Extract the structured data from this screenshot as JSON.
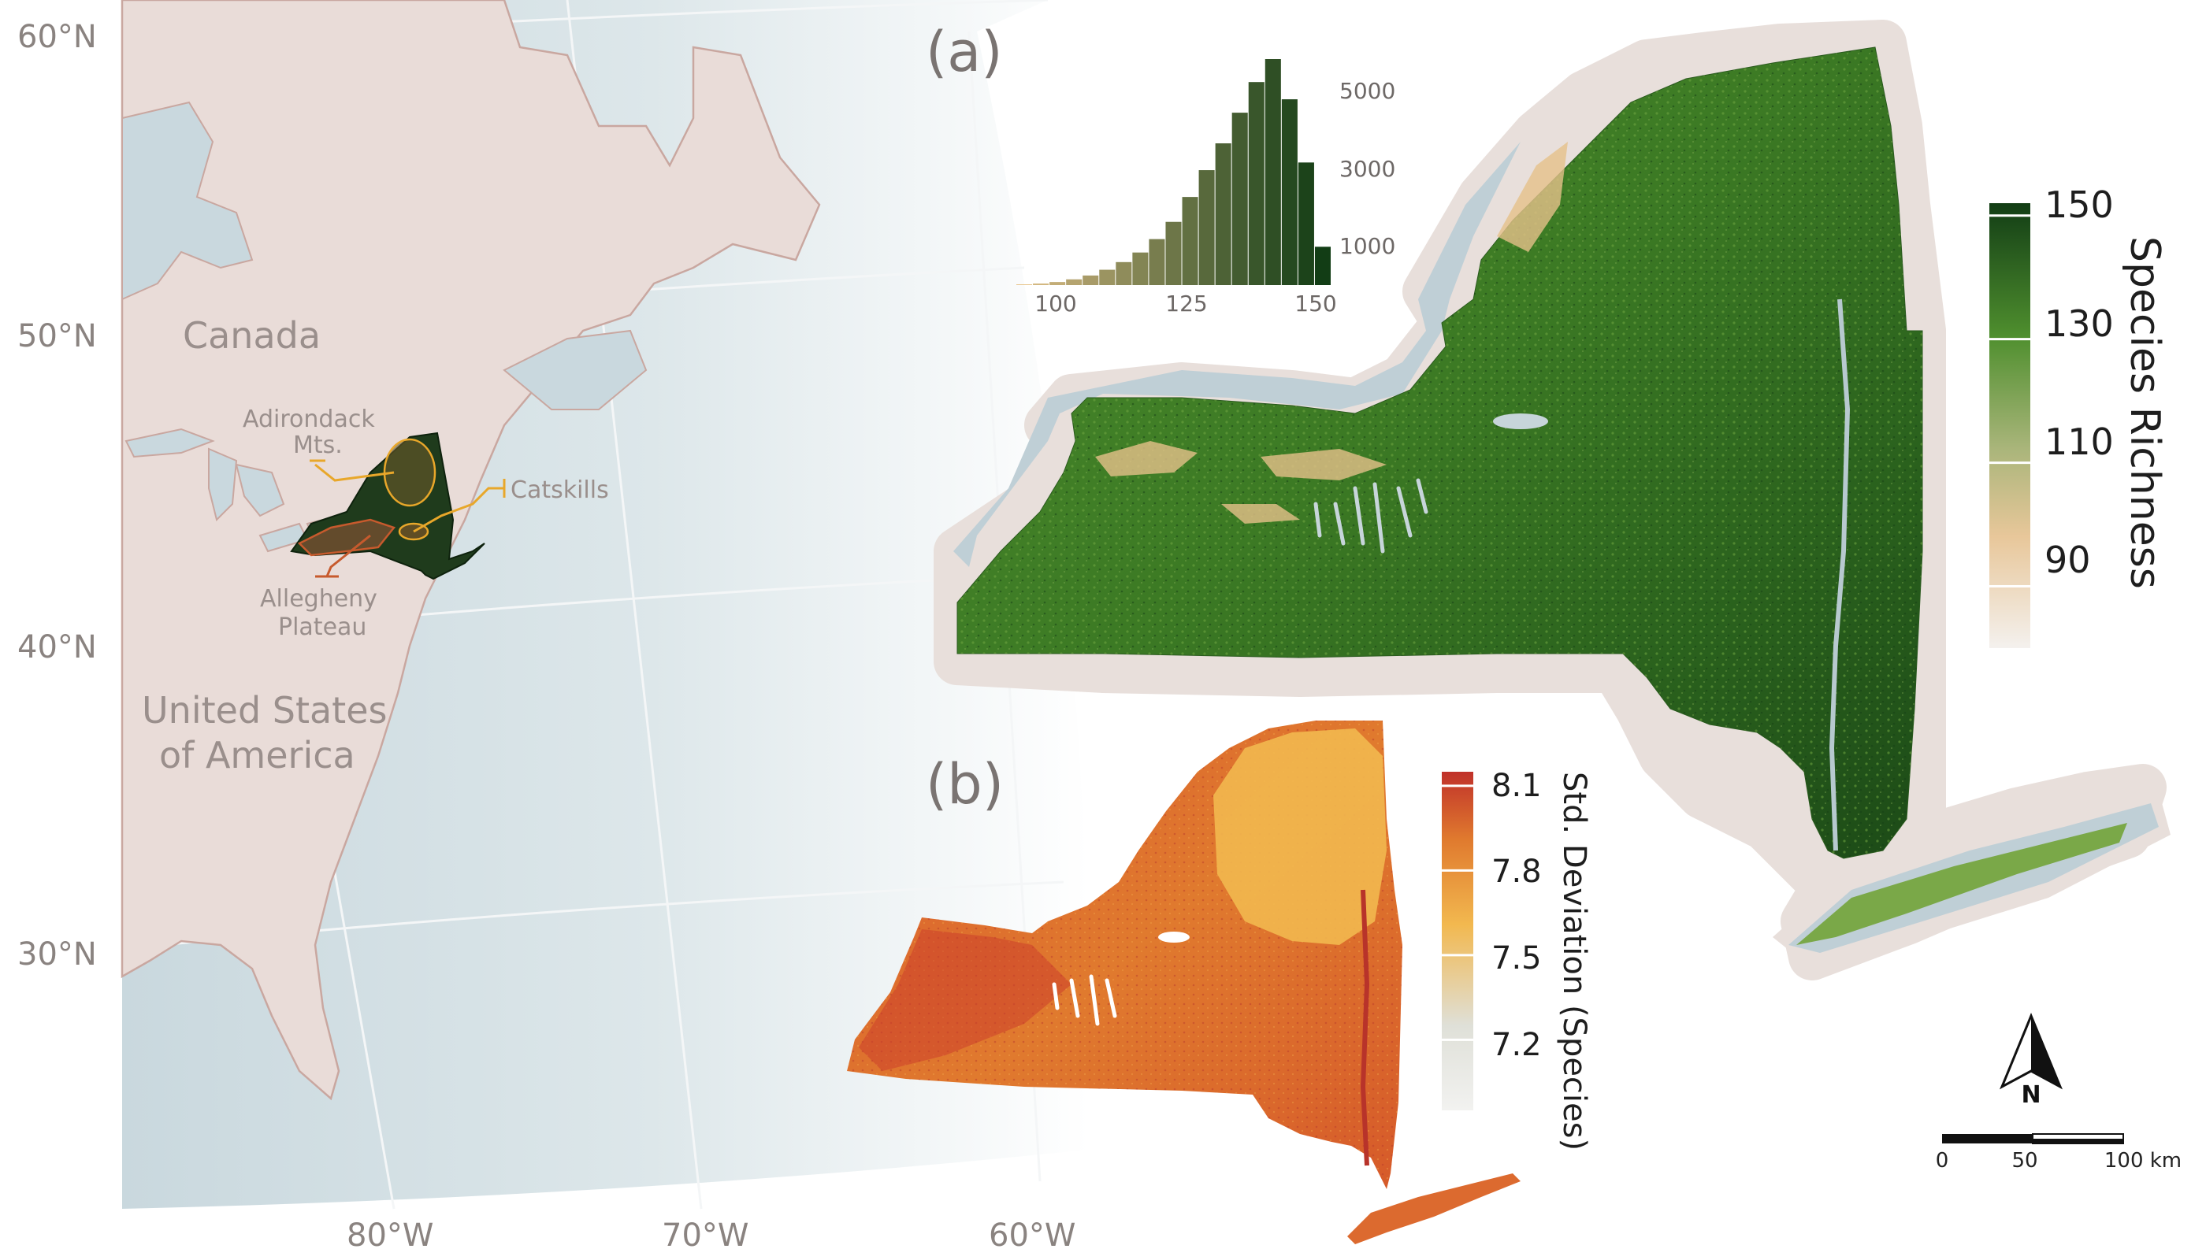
{
  "overview_map": {
    "lat_labels": [
      "60°N",
      "50°N",
      "40°N",
      "30°N"
    ],
    "lon_labels": [
      "80°W",
      "70°W",
      "60°W"
    ],
    "country_labels": {
      "canada": "Canada",
      "usa_line1": "United States",
      "usa_line2": "of America"
    },
    "region_labels": {
      "adirondack_line1": "Adirondack",
      "adirondack_line2": "Mts.",
      "catskills": "Catskills",
      "allegheny_line1": "Allegheny",
      "allegheny_line2": "Plateau"
    },
    "colors": {
      "ocean": "#c9d8de",
      "land": "#e9dcd8",
      "border": "#c9a7a0",
      "ny_fill": "#1f3b1c",
      "region_line": "#e8a72a",
      "allegheny_line": "#c75a2d"
    }
  },
  "panel_a": {
    "label": "(a)",
    "legend_title": "Species Richness",
    "legend_ticks": [
      "150",
      "130",
      "110",
      "90"
    ],
    "legend_tick_values": [
      150,
      130,
      110,
      90
    ],
    "legend_range": [
      80,
      152
    ],
    "colors": {
      "high": "#123d15",
      "mid": "#5c9a34",
      "low": "#e8c79a",
      "min": "#f4f1ee",
      "halo": "#e8dfdb",
      "water": "#bfcfd6"
    }
  },
  "histogram": {
    "x_ticks": [
      "100",
      "125",
      "150"
    ],
    "y_ticks": [
      "5000",
      "3000",
      "1000"
    ]
  },
  "panel_b": {
    "label": "(b)",
    "legend_title": "Std. Deviation (Species)",
    "legend_ticks": [
      "8.1",
      "7.8",
      "7.5",
      "7.2"
    ],
    "legend_tick_values": [
      8.1,
      7.8,
      7.5,
      7.2
    ],
    "legend_range": [
      6.95,
      8.15
    ],
    "colors": {
      "high": "#c0312a",
      "mid": "#e07a2e",
      "low": "#f2b84f",
      "pale": "#dfe0d8",
      "min": "#f2f2f0"
    }
  },
  "scale_bar": {
    "labels": [
      "0",
      "50",
      "100 km"
    ]
  },
  "north_arrow": {
    "label": "N"
  },
  "chart_data": {
    "type": "bar",
    "xlabel": "",
    "ylabel": "",
    "xlim": [
      93,
      150
    ],
    "ylim": [
      0,
      5900
    ],
    "bin_start": [
      93,
      96,
      99,
      102,
      105,
      108,
      111,
      114,
      117,
      120,
      123,
      126,
      129,
      132,
      135,
      138,
      141,
      144,
      147
    ],
    "bin_width": 3,
    "values": [
      20,
      40,
      80,
      150,
      250,
      400,
      600,
      850,
      1200,
      1650,
      2300,
      3000,
      3700,
      4500,
      5300,
      5900,
      4850,
      3200,
      1000
    ]
  }
}
